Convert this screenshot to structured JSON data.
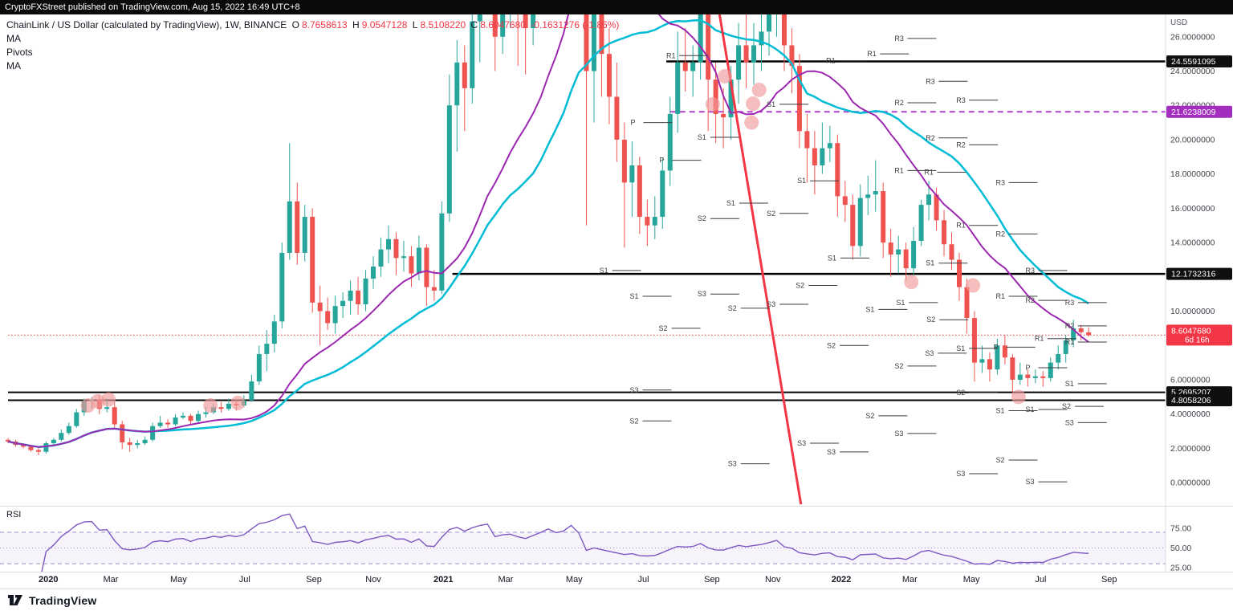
{
  "top_bar": {
    "text": "CryptoFXStreet published on TradingView.com, Aug 15, 2022 16:49 UTC+8"
  },
  "legend": {
    "symbol": "ChainLink / US Dollar (calculated by TradingView), 1W, BINANCE",
    "ohlc": [
      {
        "k": "O",
        "v": "8.7658613"
      },
      {
        "k": "H",
        "v": "9.0547128"
      },
      {
        "k": "L",
        "v": "8.5108220"
      },
      {
        "k": "C",
        "v": "8.6047680"
      }
    ],
    "change": "-0.1631276 (-1.86%)",
    "indicators": [
      "MA",
      "Pivots",
      "MA"
    ]
  },
  "axis": {
    "currency": "USD",
    "price_ticks": [
      {
        "p": 26,
        "label": "26.0000000"
      },
      {
        "p": 24,
        "label": "24.0000000"
      },
      {
        "p": 22,
        "label": "22.0000000"
      },
      {
        "p": 20,
        "label": "20.0000000"
      },
      {
        "p": 18,
        "label": "18.0000000"
      },
      {
        "p": 16,
        "label": "16.0000000"
      },
      {
        "p": 14,
        "label": "14.0000000"
      },
      {
        "p": 10,
        "label": "10.0000000"
      },
      {
        "p": 6,
        "label": "6.0000000"
      },
      {
        "p": 4,
        "label": "4.0000000"
      },
      {
        "p": 2,
        "label": "2.0000000"
      },
      {
        "p": 0,
        "label": "0.0000000"
      }
    ],
    "badges": [
      {
        "p": 24.5591095,
        "label": "24.5591095",
        "color": "#0f0f0f"
      },
      {
        "p": 21.6238009,
        "label": "21.6238009",
        "color": "#a22dbf"
      },
      {
        "p": 12.1732316,
        "label": "12.1732316",
        "color": "#0f0f0f"
      },
      {
        "p": 8.604768,
        "label": "8.6047680",
        "sub": "6d 16h",
        "color": "#f23645"
      },
      {
        "p": 5.2695207,
        "label": "5.2695207",
        "color": "#0f0f0f"
      },
      {
        "p": 4.8058206,
        "label": "4.8058206",
        "color": "#0f0f0f"
      }
    ],
    "time_ticks": [
      {
        "t": 5.3,
        "label": "2020",
        "major": true
      },
      {
        "t": 13.5,
        "label": "Mar"
      },
      {
        "t": 22.4,
        "label": "May"
      },
      {
        "t": 31.1,
        "label": "Jul"
      },
      {
        "t": 40.2,
        "label": "Sep"
      },
      {
        "t": 48.0,
        "label": "Nov"
      },
      {
        "t": 57.2,
        "label": "2021",
        "major": true
      },
      {
        "t": 65.4,
        "label": "Mar"
      },
      {
        "t": 74.4,
        "label": "May"
      },
      {
        "t": 83.5,
        "label": "Jul"
      },
      {
        "t": 92.5,
        "label": "Sep"
      },
      {
        "t": 100.5,
        "label": "Nov"
      },
      {
        "t": 109.5,
        "label": "2022",
        "major": true
      },
      {
        "t": 118.5,
        "label": "Mar"
      },
      {
        "t": 126.6,
        "label": "May"
      },
      {
        "t": 135.7,
        "label": "Jul"
      },
      {
        "t": 144.7,
        "label": "Sep"
      }
    ]
  },
  "rsi_pane": {
    "label": "RSI",
    "labels": [
      "75.00",
      "50.00",
      "25.00"
    ],
    "label_values": [
      75,
      50,
      25
    ]
  },
  "footer": {
    "brand": "TradingView"
  },
  "chart_data": {
    "type": "candlestick",
    "title": "ChainLink / US Dollar",
    "interval": "1W",
    "exchange": "BINANCE",
    "ylim": [
      -1.35,
      27.3
    ],
    "x_total_weeks": 152,
    "colors": {
      "up": "#26a69a",
      "down": "#ef5350",
      "ma_fast": "#9c27b0",
      "ma_slow": "#00bcd4",
      "trendline": "#f23645",
      "pivot": "#3c3d42",
      "marker": "#ef9a9a",
      "rsi": "#7e57c2"
    },
    "ma": [
      {
        "period": 20,
        "key": "ma_fast"
      },
      {
        "period": 30,
        "key": "ma_slow"
      }
    ],
    "candles": [
      [
        2.5,
        2.6,
        2.3,
        2.4
      ],
      [
        2.4,
        2.5,
        2.1,
        2.2
      ],
      [
        2.2,
        2.3,
        2.0,
        2.1
      ],
      [
        2.1,
        2.2,
        1.8,
        1.9
      ],
      [
        1.9,
        2.0,
        1.6,
        1.8
      ],
      [
        1.8,
        2.4,
        1.7,
        2.3
      ],
      [
        2.3,
        2.6,
        2.2,
        2.5
      ],
      [
        2.5,
        3.1,
        2.4,
        2.9
      ],
      [
        2.9,
        3.5,
        2.8,
        3.3
      ],
      [
        3.3,
        4.3,
        3.2,
        4.1
      ],
      [
        4.1,
        4.9,
        3.9,
        4.75
      ],
      [
        4.75,
        5.0,
        4.3,
        4.85
      ],
      [
        4.85,
        5.1,
        4.0,
        4.3
      ],
      [
        4.3,
        4.9,
        4.1,
        4.4
      ],
      [
        4.4,
        4.7,
        3.2,
        3.4
      ],
      [
        3.4,
        3.6,
        1.96,
        2.35
      ],
      [
        2.35,
        2.6,
        1.8,
        2.2
      ],
      [
        2.2,
        2.5,
        2.0,
        2.3
      ],
      [
        2.3,
        2.7,
        2.2,
        2.5
      ],
      [
        2.5,
        3.5,
        2.4,
        3.3
      ],
      [
        3.3,
        3.9,
        3.2,
        3.5
      ],
      [
        3.5,
        3.7,
        3.2,
        3.4
      ],
      [
        3.4,
        4.0,
        3.3,
        3.8
      ],
      [
        3.8,
        4.1,
        3.7,
        3.9
      ],
      [
        3.9,
        4.0,
        3.4,
        3.6
      ],
      [
        3.6,
        4.2,
        3.5,
        4.0
      ],
      [
        4.0,
        4.4,
        3.8,
        4.1
      ],
      [
        4.1,
        4.6,
        4.0,
        4.4
      ],
      [
        4.4,
        4.7,
        4.1,
        4.3
      ],
      [
        4.3,
        4.9,
        4.2,
        4.6
      ],
      [
        4.6,
        4.8,
        4.2,
        4.5
      ],
      [
        4.5,
        5.1,
        4.4,
        4.8
      ],
      [
        4.8,
        6.3,
        4.7,
        5.9
      ],
      [
        5.9,
        8.0,
        5.7,
        7.5
      ],
      [
        7.5,
        8.9,
        6.5,
        8.1
      ],
      [
        8.1,
        9.8,
        7.6,
        9.4
      ],
      [
        9.4,
        14.0,
        9.0,
        13.4
      ],
      [
        13.4,
        19.8,
        13.0,
        16.4
      ],
      [
        16.4,
        17.5,
        12.7,
        13.4
      ],
      [
        13.4,
        16.2,
        12.9,
        15.5
      ],
      [
        15.5,
        16.0,
        9.9,
        10.5
      ],
      [
        10.5,
        11.5,
        8.0,
        10.0
      ],
      [
        10.0,
        10.8,
        8.9,
        9.3
      ],
      [
        9.3,
        10.9,
        8.7,
        10.3
      ],
      [
        10.3,
        11.1,
        9.6,
        10.6
      ],
      [
        10.6,
        11.8,
        9.8,
        11.2
      ],
      [
        11.2,
        12.0,
        9.8,
        10.4
      ],
      [
        10.4,
        12.4,
        10.0,
        11.9
      ],
      [
        11.9,
        13.2,
        11.3,
        12.6
      ],
      [
        12.6,
        14.3,
        12.0,
        13.6
      ],
      [
        13.6,
        15.0,
        12.8,
        14.2
      ],
      [
        14.2,
        14.6,
        12.1,
        13.1
      ],
      [
        13.1,
        14.1,
        12.3,
        13.2
      ],
      [
        13.2,
        13.8,
        11.4,
        12.2
      ],
      [
        12.2,
        14.4,
        11.8,
        13.7
      ],
      [
        13.7,
        13.9,
        10.3,
        11.4
      ],
      [
        11.4,
        12.4,
        10.6,
        11.2
      ],
      [
        11.2,
        16.4,
        11.0,
        15.7
      ],
      [
        15.7,
        23.8,
        15.2,
        22.0
      ],
      [
        22.0,
        25.8,
        19.3,
        24.5
      ],
      [
        24.5,
        25.5,
        20.5,
        23.0
      ],
      [
        23.0,
        27.9,
        22.1,
        26.9
      ],
      [
        26.9,
        31.5,
        24.5,
        30.2
      ],
      [
        30.2,
        36.9,
        28.5,
        32.5
      ],
      [
        32.5,
        33.5,
        24.0,
        26.0
      ],
      [
        26.0,
        30.5,
        25.0,
        28.2
      ],
      [
        28.2,
        31.0,
        26.5,
        29.0
      ],
      [
        29.0,
        30.0,
        24.3,
        27.5
      ],
      [
        27.5,
        29.2,
        23.8,
        26.5
      ],
      [
        26.5,
        31.5,
        25.5,
        29.5
      ],
      [
        29.5,
        34.8,
        28.6,
        33.2
      ],
      [
        33.2,
        39.5,
        31.5,
        38.2
      ],
      [
        38.2,
        42.0,
        32.0,
        36.0
      ],
      [
        36.0,
        44.5,
        33.5,
        38.5
      ],
      [
        38.5,
        52.9,
        36.5,
        49.0
      ],
      [
        49.0,
        53.0,
        40.0,
        43.5
      ],
      [
        43.5,
        46.5,
        15.0,
        24.0
      ],
      [
        24.0,
        30.0,
        21.0,
        27.5
      ],
      [
        27.5,
        29.5,
        22.5,
        25.0
      ],
      [
        25.0,
        26.5,
        20.9,
        22.5
      ],
      [
        22.5,
        24.5,
        18.7,
        20.0
      ],
      [
        20.0,
        21.0,
        13.7,
        17.5
      ],
      [
        17.5,
        19.9,
        15.5,
        18.5
      ],
      [
        18.5,
        19.0,
        14.5,
        15.5
      ],
      [
        15.5,
        16.5,
        13.8,
        15.0
      ],
      [
        15.0,
        16.7,
        14.2,
        15.5
      ],
      [
        15.5,
        18.9,
        14.8,
        18.2
      ],
      [
        18.2,
        22.5,
        17.3,
        21.5
      ],
      [
        21.5,
        26.3,
        20.4,
        24.5
      ],
      [
        24.5,
        26.5,
        22.8,
        24.0
      ],
      [
        24.0,
        25.5,
        22.5,
        24.5
      ],
      [
        24.5,
        28.5,
        23.5,
        27.5
      ],
      [
        27.5,
        28.0,
        20.5,
        23.5
      ],
      [
        23.5,
        24.5,
        19.8,
        21.5
      ],
      [
        21.5,
        23.0,
        19.5,
        21.3
      ],
      [
        21.3,
        24.3,
        20.0,
        23.5
      ],
      [
        23.5,
        26.8,
        22.1,
        25.5
      ],
      [
        25.5,
        27.5,
        23.0,
        24.5
      ],
      [
        24.5,
        26.8,
        23.2,
        25.5
      ],
      [
        25.5,
        27.8,
        24.0,
        26.3
      ],
      [
        26.3,
        29.5,
        24.9,
        28.0
      ],
      [
        28.0,
        33.0,
        26.0,
        30.0
      ],
      [
        30.0,
        31.0,
        24.0,
        25.5
      ],
      [
        25.5,
        26.5,
        22.7,
        24.3
      ],
      [
        24.3,
        25.0,
        19.5,
        20.5
      ],
      [
        20.5,
        21.5,
        17.5,
        19.5
      ],
      [
        19.5,
        20.5,
        16.8,
        18.5
      ],
      [
        18.5,
        21.0,
        18.0,
        19.5
      ],
      [
        19.5,
        20.8,
        18.7,
        19.8
      ],
      [
        19.8,
        20.3,
        15.5,
        16.7
      ],
      [
        16.7,
        17.6,
        15.2,
        16.2
      ],
      [
        16.2,
        16.8,
        13.0,
        13.8
      ],
      [
        13.8,
        17.4,
        13.2,
        16.6
      ],
      [
        16.6,
        17.9,
        15.6,
        16.8
      ],
      [
        16.8,
        18.8,
        15.8,
        17.0
      ],
      [
        17.0,
        17.5,
        13.1,
        14.0
      ],
      [
        14.0,
        14.8,
        12.0,
        13.3
      ],
      [
        13.3,
        14.4,
        12.2,
        13.6
      ],
      [
        13.6,
        14.0,
        11.8,
        12.5
      ],
      [
        12.5,
        14.9,
        12.1,
        14.1
      ],
      [
        14.1,
        16.5,
        13.8,
        16.2
      ],
      [
        16.2,
        17.6,
        15.3,
        16.8
      ],
      [
        16.8,
        17.2,
        14.7,
        15.3
      ],
      [
        15.3,
        15.9,
        13.2,
        13.9
      ],
      [
        13.9,
        14.6,
        12.4,
        13.0
      ],
      [
        13.0,
        13.4,
        10.6,
        11.4
      ],
      [
        11.4,
        11.9,
        8.7,
        9.6
      ],
      [
        9.6,
        10.0,
        5.9,
        7.0
      ],
      [
        7.0,
        8.0,
        6.4,
        7.2
      ],
      [
        7.2,
        7.6,
        5.9,
        6.6
      ],
      [
        6.6,
        8.4,
        6.3,
        8.0
      ],
      [
        8.0,
        8.6,
        6.9,
        7.3
      ],
      [
        7.3,
        7.5,
        5.2,
        6.0
      ],
      [
        6.0,
        7.0,
        5.7,
        6.3
      ],
      [
        6.3,
        6.6,
        5.6,
        6.1
      ],
      [
        6.1,
        6.6,
        5.8,
        6.2
      ],
      [
        6.2,
        6.5,
        5.6,
        6.1
      ],
      [
        6.1,
        7.3,
        5.9,
        7.0
      ],
      [
        7.0,
        8.0,
        6.6,
        7.5
      ],
      [
        7.5,
        8.6,
        7.0,
        8.3
      ],
      [
        8.3,
        9.5,
        7.9,
        9.0
      ],
      [
        9.0,
        9.2,
        8.3,
        8.77
      ],
      [
        8.7658613,
        9.0547128,
        8.510822,
        8.604768
      ]
    ],
    "hlines": [
      {
        "p": 24.5591095,
        "t1": 86.5,
        "style": "solid",
        "color": "#000000",
        "w": 2.5
      },
      {
        "p": 21.6238009,
        "t1": 87.0,
        "style": "dashed",
        "color": "#b044cc",
        "w": 2
      },
      {
        "p": 12.1732316,
        "t1": 58.4,
        "style": "solid",
        "color": "#000000",
        "w": 2.5
      },
      {
        "p": 8.604768,
        "t1": 0,
        "style": "dotted",
        "color": "#f23645",
        "w": 1
      },
      {
        "p": 5.2695207,
        "t1": 0,
        "style": "solid",
        "color": "#000000",
        "w": 2
      },
      {
        "p": 4.8058206,
        "t1": 0,
        "style": "solid",
        "color": "#000000",
        "w": 2
      }
    ],
    "trendline": {
      "t1": 93.5,
      "p1": 27.3,
      "t2": 104.2,
      "p2": -1.26
    },
    "pivots": [
      [
        116.5,
        25.9,
        "R3"
      ],
      [
        86.5,
        24.9,
        "R1"
      ],
      [
        107.5,
        24.6,
        "R1"
      ],
      [
        112.9,
        25.0,
        "R1"
      ],
      [
        120.6,
        23.4,
        "R3"
      ],
      [
        116.5,
        22.15,
        "R2"
      ],
      [
        124.6,
        22.3,
        "R3"
      ],
      [
        99.7,
        22.06,
        "S1"
      ],
      [
        81.8,
        21.0,
        "P"
      ],
      [
        90.6,
        20.14,
        "S1"
      ],
      [
        120.6,
        20.1,
        "R2"
      ],
      [
        124.6,
        19.7,
        "R2"
      ],
      [
        85.6,
        18.8,
        "P"
      ],
      [
        116.5,
        18.2,
        "R1"
      ],
      [
        120.4,
        18.1,
        "R1"
      ],
      [
        129.8,
        17.5,
        "R3"
      ],
      [
        103.7,
        17.6,
        "S1"
      ],
      [
        94.4,
        16.3,
        "S1"
      ],
      [
        90.6,
        15.4,
        "S2"
      ],
      [
        99.7,
        15.7,
        "S2"
      ],
      [
        124.6,
        15.0,
        "R1"
      ],
      [
        129.8,
        14.5,
        "R2"
      ],
      [
        107.7,
        13.1,
        "S1"
      ],
      [
        120.6,
        12.8,
        "S1"
      ],
      [
        133.7,
        12.37,
        "R3"
      ],
      [
        77.7,
        12.37,
        "S1"
      ],
      [
        103.5,
        11.5,
        "S2"
      ],
      [
        81.7,
        10.87,
        "S1"
      ],
      [
        90.6,
        11.0,
        "S3"
      ],
      [
        99.7,
        10.4,
        "S3"
      ],
      [
        94.6,
        10.17,
        "S2"
      ],
      [
        112.7,
        10.1,
        "S1"
      ],
      [
        116.7,
        10.5,
        "S1"
      ],
      [
        129.8,
        10.87,
        "R1"
      ],
      [
        133.7,
        10.63,
        "R2"
      ],
      [
        138.9,
        10.5,
        "R3"
      ],
      [
        85.5,
        9.0,
        "S2"
      ],
      [
        138.9,
        9.14,
        "R2"
      ],
      [
        120.7,
        9.5,
        "S2"
      ],
      [
        134.9,
        8.4,
        "R1"
      ],
      [
        107.6,
        8.0,
        "S2"
      ],
      [
        124.6,
        7.83,
        "S1"
      ],
      [
        129.5,
        7.9,
        "P"
      ],
      [
        138.9,
        8.2,
        "R1"
      ],
      [
        120.5,
        7.55,
        "S3"
      ],
      [
        116.5,
        6.8,
        "S2"
      ],
      [
        133.7,
        6.7,
        "P"
      ],
      [
        138.9,
        5.77,
        "S1"
      ],
      [
        81.7,
        5.4,
        "S3"
      ],
      [
        124.6,
        5.25,
        "S2"
      ],
      [
        129.8,
        4.2,
        "S1"
      ],
      [
        133.7,
        4.27,
        "S1"
      ],
      [
        138.5,
        4.45,
        "S2"
      ],
      [
        81.7,
        3.6,
        "S2"
      ],
      [
        112.7,
        3.9,
        "S2"
      ],
      [
        138.9,
        3.5,
        "S3"
      ],
      [
        116.5,
        2.87,
        "S3"
      ],
      [
        103.7,
        2.3,
        "S3"
      ],
      [
        107.6,
        1.79,
        "S3"
      ],
      [
        129.8,
        1.32,
        "S2"
      ],
      [
        94.6,
        1.1,
        "S3"
      ],
      [
        124.6,
        0.52,
        "S3"
      ],
      [
        133.7,
        0.05,
        "S3"
      ]
    ],
    "markers": [
      [
        10.5,
        4.5
      ],
      [
        11.8,
        4.75
      ],
      [
        13.2,
        4.85
      ],
      [
        26.6,
        4.5
      ],
      [
        30.2,
        4.65
      ],
      [
        92.6,
        22.06
      ],
      [
        94.2,
        23.7
      ],
      [
        97.9,
        22.1
      ],
      [
        98.7,
        22.9
      ],
      [
        97.7,
        21.0
      ],
      [
        118.7,
        11.7
      ],
      [
        126.8,
        11.5
      ],
      [
        132.8,
        5.0
      ]
    ],
    "rsi": {
      "period": 14,
      "upper": 70,
      "middle": 50,
      "lower": 30
    }
  }
}
